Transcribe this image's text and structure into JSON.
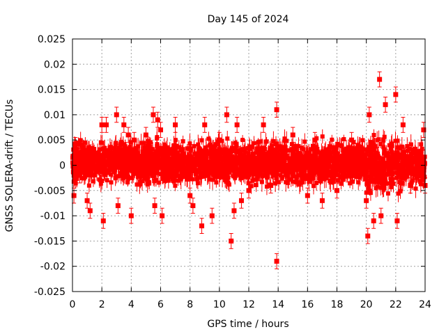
{
  "chart_data": {
    "type": "scatter",
    "title": "Day 145 of 2024",
    "xlabel": "GPS time / hours",
    "ylabel": "GNSS SOLERA-drift / TECUs",
    "xlim": [
      0,
      24
    ],
    "ylim": [
      -0.025,
      0.025
    ],
    "grid": true,
    "x_ticks": [
      0,
      2,
      4,
      6,
      8,
      10,
      12,
      14,
      16,
      18,
      20,
      22,
      24
    ],
    "x_tick_labels": [
      "0",
      "2",
      "4",
      "6",
      "8",
      "10",
      "12",
      "14",
      "16",
      "18",
      "20",
      "22",
      "24"
    ],
    "y_ticks": [
      -0.025,
      -0.02,
      -0.015,
      -0.01,
      -0.005,
      0,
      0.005,
      0.01,
      0.015,
      0.02,
      0.025
    ],
    "y_tick_labels": [
      "-0.025",
      "-0.02",
      "-0.015",
      "-0.01",
      "-0.005",
      "0",
      "0.005",
      "0.01",
      "0.015",
      "0.02",
      "0.025"
    ],
    "color": "#ff0000",
    "series": [
      {
        "marker": "square",
        "error_bars": true,
        "dense_band": [
          {
            "x_start": 0,
            "x_end": 20,
            "y_low": -0.005,
            "y_high": 0.006
          },
          {
            "x_start": 20,
            "x_end": 22.5,
            "y_low": -0.008,
            "y_high": 0.008
          },
          {
            "x_start": 22.5,
            "x_end": 24,
            "y_low": -0.005,
            "y_high": 0.005
          }
        ],
        "outliers": [
          {
            "x": 0.1,
            "y": -0.006
          },
          {
            "x": 0.2,
            "y": 0.004
          },
          {
            "x": 0.5,
            "y": -0.002
          },
          {
            "x": 1.0,
            "y": -0.007
          },
          {
            "x": 1.2,
            "y": -0.009
          },
          {
            "x": 2.0,
            "y": 0.008
          },
          {
            "x": 2.1,
            "y": -0.011
          },
          {
            "x": 2.3,
            "y": 0.008
          },
          {
            "x": 3.0,
            "y": 0.01
          },
          {
            "x": 3.1,
            "y": -0.008
          },
          {
            "x": 3.5,
            "y": 0.008
          },
          {
            "x": 3.8,
            "y": 0.006
          },
          {
            "x": 4.0,
            "y": -0.01
          },
          {
            "x": 4.2,
            "y": 0.005
          },
          {
            "x": 5.0,
            "y": 0.006
          },
          {
            "x": 5.5,
            "y": 0.01
          },
          {
            "x": 5.6,
            "y": -0.008
          },
          {
            "x": 5.8,
            "y": 0.009
          },
          {
            "x": 6.0,
            "y": 0.007
          },
          {
            "x": 6.1,
            "y": -0.01
          },
          {
            "x": 7.0,
            "y": 0.008
          },
          {
            "x": 8.0,
            "y": -0.006
          },
          {
            "x": 8.2,
            "y": -0.008
          },
          {
            "x": 8.8,
            "y": -0.012
          },
          {
            "x": 9.0,
            "y": 0.008
          },
          {
            "x": 9.5,
            "y": -0.01
          },
          {
            "x": 10.0,
            "y": 0.005
          },
          {
            "x": 10.5,
            "y": 0.01
          },
          {
            "x": 10.8,
            "y": -0.015
          },
          {
            "x": 11.0,
            "y": -0.009
          },
          {
            "x": 11.2,
            "y": 0.008
          },
          {
            "x": 11.5,
            "y": -0.007
          },
          {
            "x": 12.0,
            "y": -0.005
          },
          {
            "x": 13.0,
            "y": 0.008
          },
          {
            "x": 13.5,
            "y": -0.004
          },
          {
            "x": 13.9,
            "y": 0.011
          },
          {
            "x": 13.9,
            "y": -0.019
          },
          {
            "x": 15.0,
            "y": 0.006
          },
          {
            "x": 16.0,
            "y": -0.006
          },
          {
            "x": 16.5,
            "y": 0.005
          },
          {
            "x": 17.0,
            "y": -0.007
          },
          {
            "x": 18.0,
            "y": -0.005
          },
          {
            "x": 19.0,
            "y": 0.005
          },
          {
            "x": 20.0,
            "y": -0.007
          },
          {
            "x": 20.1,
            "y": -0.014
          },
          {
            "x": 20.2,
            "y": 0.01
          },
          {
            "x": 20.5,
            "y": -0.011
          },
          {
            "x": 20.9,
            "y": 0.017
          },
          {
            "x": 21.0,
            "y": -0.01
          },
          {
            "x": 21.3,
            "y": 0.012
          },
          {
            "x": 22.0,
            "y": 0.014
          },
          {
            "x": 22.1,
            "y": -0.011
          },
          {
            "x": 22.5,
            "y": 0.008
          },
          {
            "x": 23.0,
            "y": -0.004
          },
          {
            "x": 23.9,
            "y": 0.007
          },
          {
            "x": 24.0,
            "y": -0.004
          }
        ]
      }
    ]
  }
}
